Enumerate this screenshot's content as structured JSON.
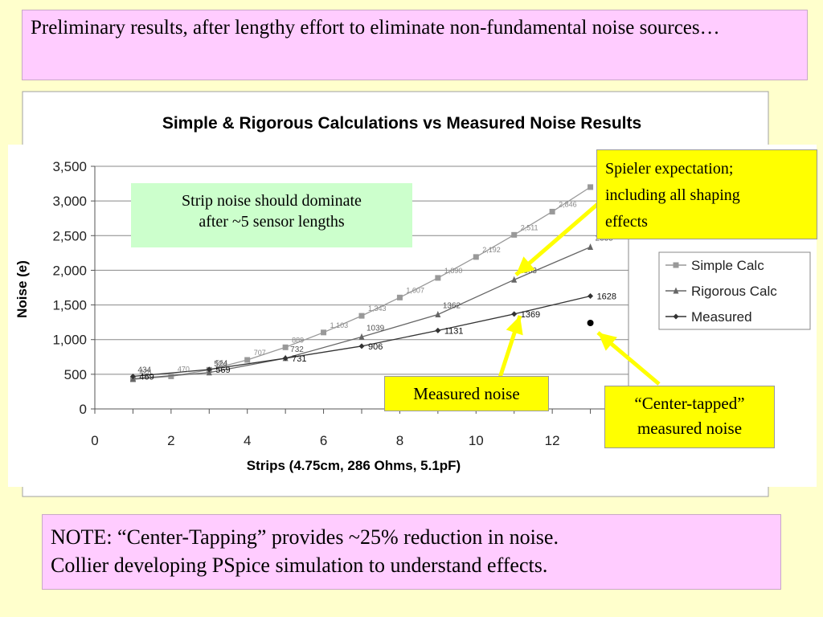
{
  "header": {
    "text": "Preliminary results, after lengthy effort to eliminate non-fundamental noise sources…"
  },
  "note": {
    "line1": "NOTE: “Center-Tapping” provides ~25% reduction in noise.",
    "line2": "Collier developing PSpice simulation to understand effects."
  },
  "callouts": {
    "strip": {
      "line1": "Strip noise should dominate",
      "line2": "after ~5 sensor lengths"
    },
    "spieler": {
      "line1": "Spieler expectation;",
      "line2": "including all shaping",
      "line3": "effects"
    },
    "measured": {
      "text": "Measured noise"
    },
    "center": {
      "line1": "“Center-tapped”",
      "line2": "measured noise"
    }
  },
  "colors": {
    "background": "#ffffcc",
    "pink": "#ffccff",
    "green": "#ccffcc",
    "yellow": "#ffff00",
    "arrow": "#ffff00"
  },
  "chart_data": {
    "type": "line",
    "title": "Simple & Rigorous Calculations vs Measured Noise Results",
    "xlabel": "Strips (4.75cm, 286 Ohms, 5.1pF)",
    "ylabel": "Noise (e)",
    "xlim": [
      0,
      14
    ],
    "ylim": [
      0,
      3500
    ],
    "xticks": [
      "0",
      "2",
      "4",
      "6",
      "8",
      "10",
      "12"
    ],
    "yticks": [
      "0",
      "500",
      "1,000",
      "1,500",
      "2,000",
      "2,500",
      "3,000",
      "3,500"
    ],
    "grid": "horizontal",
    "legend_position": "right",
    "series": [
      {
        "name": "Simple Calc",
        "marker": "square",
        "color": "#999999",
        "x": [
          1,
          2,
          3,
          4,
          5,
          6,
          7,
          8,
          9,
          10,
          11,
          12,
          13
        ],
        "y": [
          426,
          470,
          564,
          707,
          889,
          1103,
          1343,
          1607,
          1890,
          2192,
          2511,
          2846,
          3200
        ],
        "labels": [
          "426",
          "470",
          "564",
          "707",
          "889",
          "1,103",
          "1,343",
          "1,607",
          "1,890",
          "2,192",
          "2,511",
          "2,846",
          ""
        ]
      },
      {
        "name": "Rigorous Calc",
        "marker": "triangle",
        "color": "#666666",
        "x": [
          1,
          3,
          5,
          7,
          9,
          11,
          13
        ],
        "y": [
          434,
          524,
          732,
          1039,
          1362,
          1863,
          2335
        ],
        "labels": [
          "434",
          "524",
          "732",
          "1039",
          "1362",
          "1863",
          "2335"
        ]
      },
      {
        "name": "Measured",
        "marker": "diamond",
        "color": "#333333",
        "x": [
          1,
          3,
          5,
          7,
          9,
          11,
          13
        ],
        "y": [
          469,
          569,
          731,
          906,
          1131,
          1369,
          1628
        ],
        "labels": [
          "469",
          "569",
          "731",
          "906",
          "1131",
          "1369",
          "1628"
        ]
      }
    ],
    "extra_points": [
      {
        "name": "Center-tapped measured",
        "x": 13,
        "y": 1240
      }
    ]
  }
}
